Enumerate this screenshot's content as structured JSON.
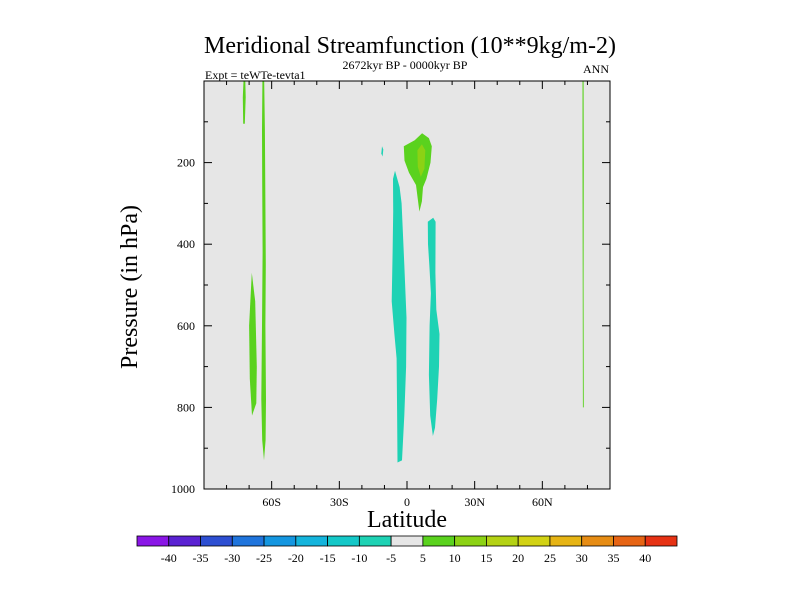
{
  "chart_data": {
    "type": "contour",
    "title": "Meridional Streamfunction (10**9kg/m-2)",
    "left_string": "Expt = teWTe-tevta1",
    "center_string": "2672kyr BP - 0000kyr BP",
    "right_string": "ANN",
    "xlabel": "Latitude",
    "ylabel": "Pressure (in hPa)",
    "xlim": [
      -90,
      90
    ],
    "ylim": [
      0,
      1000
    ],
    "y_reversed": true,
    "x_ticks": [
      {
        "value": -60,
        "label": "60S"
      },
      {
        "value": -30,
        "label": "30S"
      },
      {
        "value": 0,
        "label": "0"
      },
      {
        "value": 30,
        "label": "30N"
      },
      {
        "value": 60,
        "label": "60N"
      }
    ],
    "y_ticks": [
      {
        "value": 200,
        "label": "200"
      },
      {
        "value": 400,
        "label": "400"
      },
      {
        "value": 600,
        "label": "600"
      },
      {
        "value": 800,
        "label": "800"
      },
      {
        "value": 1000,
        "label": "1000"
      }
    ],
    "background_color": "#e6e6e6",
    "colorbar": {
      "levels": [
        -40,
        -35,
        -30,
        -25,
        -20,
        -15,
        -10,
        -5,
        5,
        10,
        15,
        20,
        25,
        30,
        35,
        40
      ],
      "labels": [
        "-40",
        "-35",
        "-30",
        "-25",
        "-20",
        "-15",
        "-10",
        "-5",
        "5",
        "10",
        "15",
        "20",
        "25",
        "30",
        "35",
        "40"
      ],
      "colors": [
        "#8a16e6",
        "#5a22d2",
        "#2d4fd2",
        "#1f74dc",
        "#1496e0",
        "#14b4dc",
        "#14c8c8",
        "#1ed2b4",
        "#e6e6e6",
        "#5ad21e",
        "#8cd214",
        "#b4d214",
        "#d2d214",
        "#e6b414",
        "#e68c14",
        "#e66414",
        "#e63214"
      ]
    },
    "regions": [
      {
        "name": "nh-band-upper",
        "level": 5,
        "color": "#5ad21e",
        "points": [
          [
            -72.5,
            0
          ],
          [
            -71.7,
            0
          ],
          [
            -71.5,
            40
          ],
          [
            -71.9,
            105
          ],
          [
            -72.6,
            105
          ],
          [
            -72.8,
            40
          ]
        ]
      },
      {
        "name": "sh-strip-60s",
        "level": 5,
        "color": "#5ad21e",
        "points": [
          [
            -64.1,
            0
          ],
          [
            -63.3,
            0
          ],
          [
            -63.0,
            120
          ],
          [
            -62.8,
            300
          ],
          [
            -62.6,
            450
          ],
          [
            -62.8,
            600
          ],
          [
            -62.5,
            780
          ],
          [
            -62.7,
            880
          ],
          [
            -63.4,
            930
          ],
          [
            -64.2,
            880
          ],
          [
            -64.6,
            780
          ],
          [
            -64.3,
            600
          ],
          [
            -64.0,
            420
          ],
          [
            -64.2,
            250
          ],
          [
            -64.3,
            120
          ]
        ]
      },
      {
        "name": "sh-lobe-65s",
        "level": 5,
        "color": "#5ad21e",
        "points": [
          [
            -68.8,
            470
          ],
          [
            -67.3,
            540
          ],
          [
            -66.6,
            700
          ],
          [
            -66.8,
            790
          ],
          [
            -68.7,
            820
          ],
          [
            -69.7,
            730
          ],
          [
            -70.0,
            600
          ]
        ]
      },
      {
        "name": "eq-south-column",
        "level": -5,
        "color": "#1ed2b4",
        "points": [
          [
            -5.3,
            220
          ],
          [
            -3.3,
            260
          ],
          [
            -2.4,
            300
          ],
          [
            -1.2,
            450
          ],
          [
            -0.2,
            580
          ],
          [
            -0.4,
            700
          ],
          [
            -1.2,
            820
          ],
          [
            -2.2,
            930
          ],
          [
            -4.2,
            935
          ],
          [
            -4.4,
            810
          ],
          [
            -4.6,
            680
          ],
          [
            -5.6,
            620
          ],
          [
            -6.8,
            540
          ],
          [
            -6.4,
            420
          ],
          [
            -6.1,
            320
          ],
          [
            -6.2,
            240
          ]
        ]
      },
      {
        "name": "eq-north-column",
        "level": -5,
        "color": "#1ed2b4",
        "points": [
          [
            9.2,
            345
          ],
          [
            11.6,
            335
          ],
          [
            12.7,
            345
          ],
          [
            12.6,
            470
          ],
          [
            13.0,
            560
          ],
          [
            14.4,
            620
          ],
          [
            14.2,
            700
          ],
          [
            13.4,
            780
          ],
          [
            12.4,
            850
          ],
          [
            11.5,
            870
          ],
          [
            10.3,
            820
          ],
          [
            9.7,
            720
          ],
          [
            10.0,
            600
          ],
          [
            10.6,
            520
          ],
          [
            9.9,
            450
          ],
          [
            9.3,
            400
          ]
        ]
      },
      {
        "name": "eq-speck",
        "level": -5,
        "color": "#1ed2b4",
        "points": [
          [
            -11.1,
            160
          ],
          [
            -10.5,
            168
          ],
          [
            -10.8,
            185
          ],
          [
            -11.4,
            178
          ]
        ]
      },
      {
        "name": "upper-cell-outer",
        "level": 5,
        "color": "#5ad21e",
        "points": [
          [
            3.4,
            145
          ],
          [
            6.7,
            128
          ],
          [
            9.7,
            140
          ],
          [
            11.0,
            160
          ],
          [
            10.4,
            200
          ],
          [
            8.6,
            240
          ],
          [
            7.1,
            260
          ],
          [
            6.6,
            295
          ],
          [
            5.5,
            320
          ],
          [
            4.8,
            290
          ],
          [
            4.0,
            255
          ],
          [
            0.9,
            225
          ],
          [
            -1.1,
            195
          ],
          [
            -1.4,
            160
          ]
        ]
      },
      {
        "name": "upper-cell-inner",
        "level": 10,
        "color": "#8cd214",
        "points": [
          [
            4.6,
            170
          ],
          [
            6.6,
            155
          ],
          [
            8.1,
            170
          ],
          [
            7.7,
            215
          ],
          [
            6.1,
            235
          ],
          [
            4.8,
            210
          ]
        ]
      },
      {
        "name": "nh-band-right",
        "level": 5,
        "color": "#5ad21e",
        "points": [
          [
            77.8,
            0
          ],
          [
            78.3,
            0
          ],
          [
            78.4,
            200
          ],
          [
            78.3,
            500
          ],
          [
            78.4,
            800
          ],
          [
            78.0,
            800
          ],
          [
            77.9,
            500
          ],
          [
            77.8,
            200
          ]
        ]
      }
    ]
  }
}
